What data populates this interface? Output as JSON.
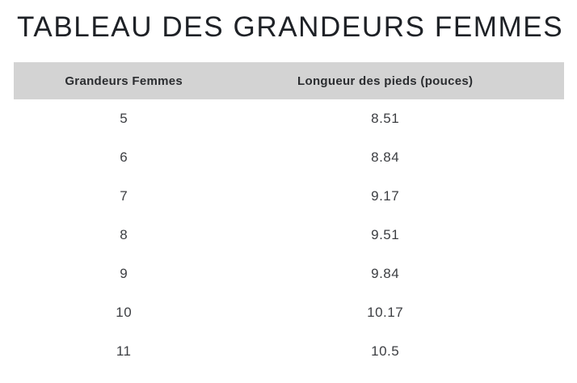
{
  "page": {
    "title": "TABLEAU DES GRANDEURS FEMMES"
  },
  "table": {
    "headers": [
      "Grandeurs Femmes",
      "Longueur des pieds (pouces)"
    ],
    "rows": [
      [
        "5",
        "8.51"
      ],
      [
        "6",
        "8.84"
      ],
      [
        "7",
        "9.17"
      ],
      [
        "8",
        "9.51"
      ],
      [
        "9",
        "9.84"
      ],
      [
        "10",
        "10.17"
      ],
      [
        "11",
        "10.5"
      ]
    ]
  },
  "colors": {
    "page_bg": "#ffffff",
    "header_bg": "#d3d3d3",
    "title_text": "#1e2126",
    "header_text": "#2b2d30",
    "body_text": "#3c3e42"
  },
  "chart_data": {
    "type": "table",
    "title": "TABLEAU DES GRANDEURS FEMMES",
    "columns": [
      "Grandeurs Femmes",
      "Longueur des pieds (pouces)"
    ],
    "categories": [
      "5",
      "6",
      "7",
      "8",
      "9",
      "10",
      "11"
    ],
    "values": [
      8.51,
      8.84,
      9.17,
      9.51,
      9.84,
      10.17,
      10.5
    ]
  }
}
